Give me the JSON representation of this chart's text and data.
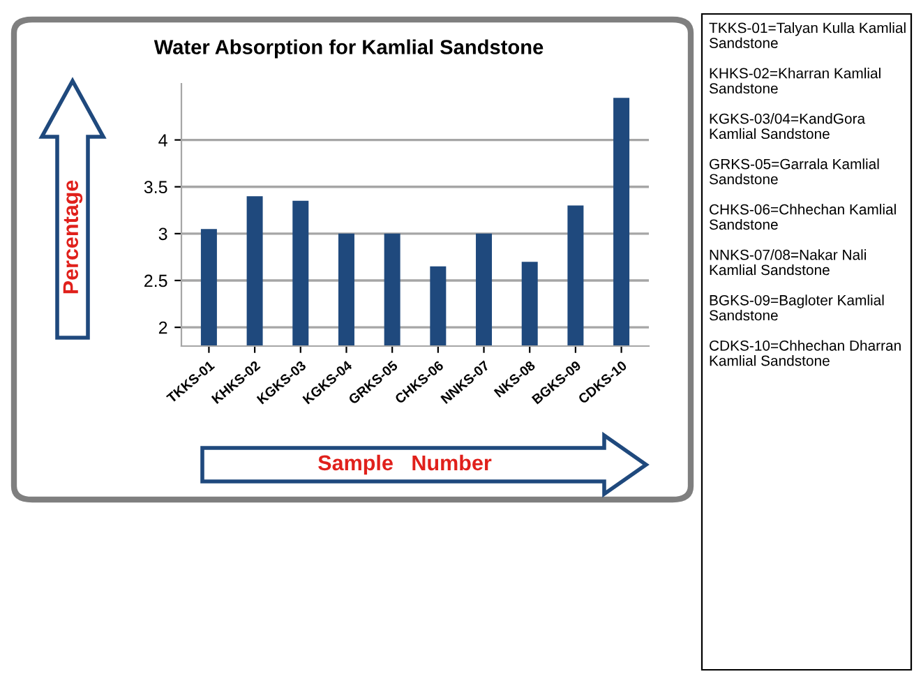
{
  "chart_data": {
    "type": "bar",
    "title": "Water Absorption for Kamlial Sandstone",
    "xlabel": "Sample   Number",
    "ylabel": "Percentage",
    "categories": [
      "TKKS-01",
      "KHKS-02",
      "KGKS-03",
      "KGKS-04",
      "GRKS-05",
      "CHKS-06",
      "NNKS-07",
      "NKS-08",
      "BGKS-09",
      "CDKS-10"
    ],
    "values": [
      3.05,
      3.4,
      3.35,
      3.0,
      3.0,
      2.65,
      3.0,
      2.7,
      3.3,
      4.45
    ],
    "color": "#1f497d",
    "ylim": [
      1.8,
      4.6
    ],
    "yticks": [
      2,
      2.5,
      3,
      3.5,
      4
    ],
    "grid": "y",
    "annotations": [
      "TKKS-01=Talyan Kulla Kamlial Sandstone",
      "KHKS-02=Kharran Kamlial Sandstone",
      "KGKS-03/04=KandGora Kamlial Sandstone",
      "GRKS-05=Garrala Kamlial Sandstone",
      "CHKS-06=Chhechan Kamlial Sandstone",
      "NNKS-07/08=Nakar Nali Kamlial Sandstone",
      "BGKS-09=Bagloter Kamlial Sandstone",
      "CDKS-10=Chhechan Dharran Kamlial Sandstone"
    ]
  }
}
